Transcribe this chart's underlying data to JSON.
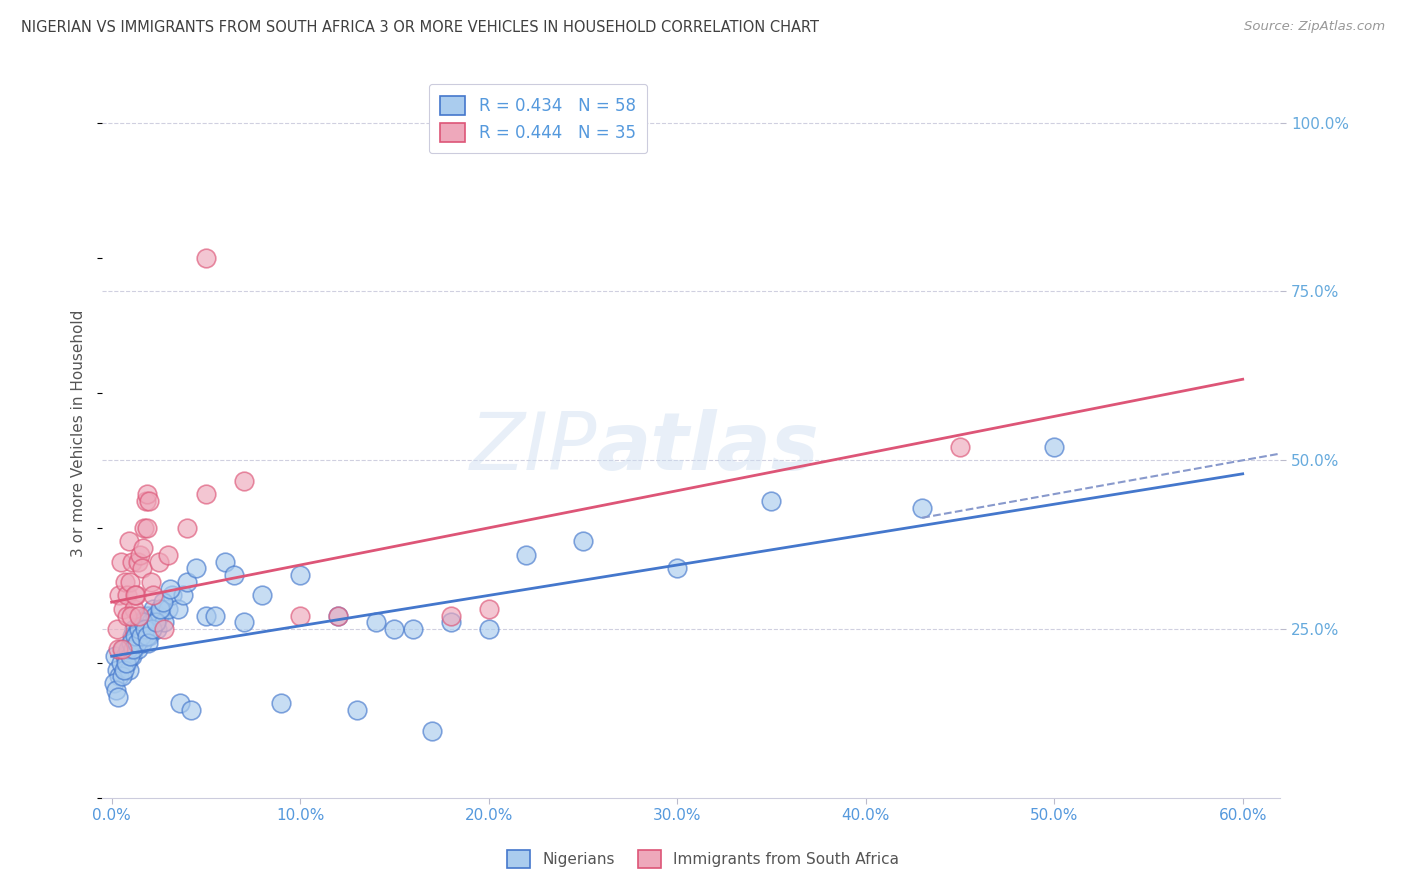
{
  "title": "NIGERIAN VS IMMIGRANTS FROM SOUTH AFRICA 3 OR MORE VEHICLES IN HOUSEHOLD CORRELATION CHART",
  "source": "Source: ZipAtlas.com",
  "ylabel": "3 or more Vehicles in Household",
  "x_tick_labels": [
    "0.0%",
    "10.0%",
    "20.0%",
    "30.0%",
    "40.0%",
    "50.0%",
    "60.0%"
  ],
  "x_tick_values": [
    0.0,
    10.0,
    20.0,
    30.0,
    40.0,
    50.0,
    60.0
  ],
  "y_tick_labels": [
    "100.0%",
    "75.0%",
    "50.0%",
    "25.0%"
  ],
  "y_tick_values": [
    100.0,
    75.0,
    50.0,
    25.0
  ],
  "xlim": [
    -0.5,
    62.0
  ],
  "ylim": [
    0.0,
    108.0
  ],
  "legend_r1": "R = 0.434   N = 58",
  "legend_r2": "R = 0.444   N = 35",
  "bottom_legend": [
    "Nigerians",
    "Immigrants from South Africa"
  ],
  "watermark": "ZIPatlas",
  "background_color": "#ffffff",
  "grid_color": "#d0d0e0",
  "title_color": "#404040",
  "tick_color": "#5599dd",
  "right_tick_color": "#66aadd",
  "nigerian_dots": {
    "x": [
      0.2,
      0.3,
      0.4,
      0.5,
      0.6,
      0.7,
      0.8,
      0.9,
      1.0,
      1.1,
      1.1,
      1.2,
      1.2,
      1.3,
      1.3,
      1.4,
      1.4,
      1.5,
      1.5,
      1.6,
      1.6,
      1.7,
      1.7,
      1.8,
      1.8,
      1.9,
      2.0,
      2.0,
      2.1,
      2.2,
      2.3,
      2.4,
      2.5,
      2.6,
      2.8,
      3.0,
      3.2,
      3.5,
      3.8,
      4.0,
      4.5,
      5.0,
      5.5,
      6.0,
      7.0,
      8.0,
      10.0,
      12.0,
      14.0,
      16.0,
      18.0,
      20.0,
      22.0,
      25.0,
      30.0,
      35.0,
      43.0,
      50.0
    ],
    "y": [
      21.0,
      19.0,
      18.0,
      20.0,
      22.0,
      21.0,
      20.0,
      19.0,
      22.0,
      24.0,
      21.0,
      25.0,
      22.0,
      23.0,
      24.0,
      22.0,
      25.0,
      24.0,
      26.0,
      23.0,
      25.0,
      24.0,
      26.0,
      25.0,
      27.0,
      26.0,
      24.0,
      27.0,
      26.0,
      28.0,
      27.0,
      25.0,
      27.0,
      28.0,
      26.0,
      28.0,
      30.0,
      28.0,
      30.0,
      32.0,
      34.0,
      27.0,
      27.0,
      35.0,
      26.0,
      30.0,
      33.0,
      27.0,
      26.0,
      25.0,
      26.0,
      25.0,
      36.0,
      38.0,
      34.0,
      44.0,
      43.0,
      52.0
    ]
  },
  "nigerian_dots2": {
    "x": [
      0.15,
      0.25,
      0.35,
      0.55,
      0.65,
      0.75,
      0.85,
      0.95,
      1.05,
      1.15,
      1.25,
      1.35,
      1.45,
      1.55,
      1.65,
      1.75,
      1.85,
      1.95,
      2.15,
      2.35,
      2.55,
      2.75,
      3.1,
      3.6,
      4.2,
      6.5,
      9.0,
      13.0,
      15.0,
      17.0
    ],
    "y": [
      17.0,
      16.0,
      15.0,
      18.0,
      19.0,
      20.0,
      22.0,
      21.0,
      23.0,
      22.0,
      24.0,
      23.0,
      25.0,
      24.0,
      26.0,
      25.0,
      24.0,
      23.0,
      25.0,
      26.0,
      28.0,
      29.0,
      31.0,
      14.0,
      13.0,
      33.0,
      14.0,
      13.0,
      25.0,
      10.0
    ]
  },
  "southafrica_dots": {
    "x": [
      0.3,
      0.4,
      0.5,
      0.6,
      0.7,
      0.8,
      0.9,
      1.0,
      1.1,
      1.2,
      1.3,
      1.4,
      1.5,
      1.6,
      1.7,
      1.8,
      1.9,
      2.0,
      2.1,
      2.5,
      3.0,
      4.0,
      5.0,
      7.0,
      10.0,
      18.0,
      20.0,
      45.0
    ],
    "y": [
      25.0,
      30.0,
      35.0,
      28.0,
      32.0,
      30.0,
      38.0,
      32.0,
      35.0,
      28.0,
      30.0,
      35.0,
      36.0,
      34.0,
      40.0,
      44.0,
      45.0,
      44.0,
      32.0,
      35.0,
      36.0,
      40.0,
      45.0,
      47.0,
      27.0,
      27.0,
      28.0,
      52.0
    ]
  },
  "southafrica_dots2": {
    "x": [
      0.35,
      0.55,
      0.8,
      1.05,
      1.25,
      1.45,
      1.65,
      1.85,
      2.2,
      2.8,
      5.0,
      12.0
    ],
    "y": [
      22.0,
      22.0,
      27.0,
      27.0,
      30.0,
      27.0,
      37.0,
      40.0,
      30.0,
      25.0,
      80.0,
      27.0
    ]
  },
  "nigerian_line": {
    "x0": 0.0,
    "y0": 21.0,
    "x1": 60.0,
    "y1": 48.0
  },
  "southafrica_line": {
    "x0": 0.0,
    "y0": 29.0,
    "x1": 60.0,
    "y1": 62.0
  },
  "nigerian_line_color": "#4477cc",
  "southafrica_line_color": "#dd5577",
  "nigerian_dot_color": "#aaccee",
  "southafrica_dot_color": "#eea8bb",
  "dashed_line": {
    "x0": 43.0,
    "y0": 41.5,
    "x1": 62.0,
    "y1": 51.0
  },
  "dashed_line_color": "#8899cc"
}
